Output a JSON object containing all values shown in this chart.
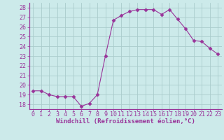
{
  "x": [
    0,
    1,
    2,
    3,
    4,
    5,
    6,
    7,
    8,
    9,
    10,
    11,
    12,
    13,
    14,
    15,
    16,
    17,
    18,
    19,
    20,
    21,
    22,
    23
  ],
  "y": [
    19.4,
    19.4,
    19.0,
    18.8,
    18.8,
    18.8,
    17.8,
    18.1,
    19.0,
    23.0,
    26.7,
    27.2,
    27.6,
    27.8,
    27.8,
    27.8,
    27.3,
    27.8,
    26.8,
    25.8,
    24.6,
    24.5,
    23.8,
    23.2
  ],
  "line_color": "#993399",
  "marker": "D",
  "marker_size": 2.5,
  "bg_color": "#cceaea",
  "grid_color": "#b0d8d8",
  "xlabel": "Windchill (Refroidissement éolien,°C)",
  "xlabel_color": "#993399",
  "tick_label_color": "#993399",
  "ylim": [
    17.5,
    28.5
  ],
  "xlim": [
    -0.5,
    23.5
  ],
  "yticks": [
    18,
    19,
    20,
    21,
    22,
    23,
    24,
    25,
    26,
    27,
    28
  ],
  "xticks": [
    0,
    1,
    2,
    3,
    4,
    5,
    6,
    7,
    8,
    9,
    10,
    11,
    12,
    13,
    14,
    15,
    16,
    17,
    18,
    19,
    20,
    21,
    22,
    23
  ],
  "tick_fontsize": 6.0,
  "xlabel_fontsize": 6.5
}
